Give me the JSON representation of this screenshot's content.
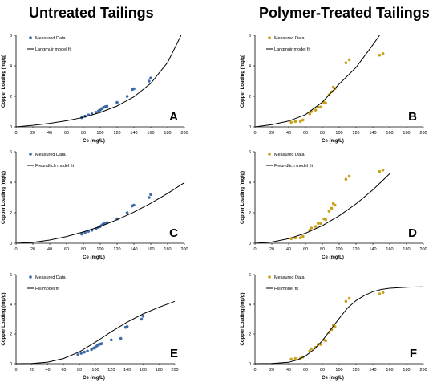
{
  "columns": {
    "left_title": "Untreated Tailings",
    "right_title": "Polymer-Treated Tailings"
  },
  "colors": {
    "untreated_marker": "#3d6aa8",
    "treated_marker": "#c9a21a",
    "model_line": "#000000",
    "axis": "#000000"
  },
  "chart_data": [
    {
      "panel": "A",
      "type": "scatter",
      "xlabel": "Ce (mg/L)",
      "ylabel": "Copper Loading (mg/g)",
      "xlim": [
        0,
        200
      ],
      "ylim": [
        0,
        6
      ],
      "xticks": [
        "0",
        "20",
        "40",
        "60",
        "80",
        "100",
        "120",
        "140",
        "160",
        "180",
        "200"
      ],
      "yticks": [
        "0",
        "2",
        "4",
        "6"
      ],
      "legend": {
        "placement": "top-left",
        "entries": [
          "Measured Data",
          "Langmuir model fit"
        ]
      },
      "series": [
        {
          "name": "Measured Data",
          "kind": "points",
          "x": [
            78,
            82,
            86,
            90,
            95,
            98,
            100,
            102,
            104,
            106,
            108,
            120,
            132,
            138,
            140,
            158,
            160
          ],
          "y": [
            0.6,
            0.7,
            0.78,
            0.85,
            0.95,
            1.05,
            1.1,
            1.2,
            1.28,
            1.32,
            1.35,
            1.6,
            2.0,
            2.45,
            2.5,
            3.0,
            3.2
          ]
        },
        {
          "name": "Langmuir model fit",
          "kind": "line",
          "x": [
            0,
            20,
            40,
            60,
            80,
            100,
            120,
            140,
            160,
            180,
            196
          ],
          "y": [
            0,
            0.1,
            0.23,
            0.4,
            0.62,
            0.94,
            1.37,
            1.97,
            2.85,
            4.22,
            6.0
          ]
        }
      ]
    },
    {
      "panel": "B",
      "type": "scatter",
      "xlabel": "Ce (mg/L)",
      "ylabel": "Copper Loading (mg/g)",
      "xlim": [
        0,
        200
      ],
      "ylim": [
        0,
        6
      ],
      "xticks": [
        "0",
        "20",
        "40",
        "60",
        "80",
        "100",
        "120",
        "140",
        "160",
        "180",
        "200"
      ],
      "yticks": [
        "0",
        "2",
        "4",
        "6"
      ],
      "legend": {
        "placement": "top-left",
        "entries": [
          "Measured Data",
          "Langmuir model fit"
        ]
      },
      "series": [
        {
          "name": "Measured Data",
          "kind": "points",
          "x": [
            43,
            48,
            54,
            57,
            65,
            67,
            72,
            75,
            78,
            82,
            84,
            88,
            91,
            93,
            95,
            108,
            112,
            148,
            152
          ],
          "y": [
            0.3,
            0.35,
            0.35,
            0.45,
            0.85,
            1.0,
            1.1,
            1.3,
            1.3,
            1.6,
            1.55,
            2.1,
            2.3,
            2.6,
            2.5,
            4.2,
            4.4,
            4.7,
            4.8
          ]
        },
        {
          "name": "Langmuir model fit",
          "kind": "line",
          "x": [
            0,
            20,
            40,
            60,
            80,
            100,
            120,
            140,
            148
          ],
          "y": [
            0,
            0.14,
            0.38,
            0.8,
            1.62,
            2.81,
            3.89,
            5.38,
            6.0
          ]
        }
      ]
    },
    {
      "panel": "C",
      "type": "scatter",
      "xlabel": "Ce (mg/L)",
      "ylabel": "Copper Loading (mg/g)",
      "xlim": [
        0,
        200
      ],
      "ylim": [
        0,
        6
      ],
      "xticks": [
        "0",
        "20",
        "40",
        "60",
        "80",
        "100",
        "120",
        "140",
        "160",
        "180",
        "200"
      ],
      "yticks": [
        "0",
        "2",
        "4",
        "6"
      ],
      "legend": {
        "placement": "top-left",
        "entries": [
          "Measured Data",
          "Freundlich model fit"
        ]
      },
      "series": [
        {
          "name": "Measured Data",
          "kind": "points",
          "x": [
            78,
            82,
            86,
            90,
            95,
            98,
            100,
            102,
            104,
            106,
            108,
            120,
            132,
            138,
            140,
            158,
            160
          ],
          "y": [
            0.6,
            0.7,
            0.78,
            0.85,
            0.95,
            1.05,
            1.1,
            1.2,
            1.28,
            1.32,
            1.35,
            1.6,
            2.0,
            2.45,
            2.5,
            3.0,
            3.2
          ]
        },
        {
          "name": "Freundlich model fit",
          "kind": "line",
          "x": [
            0,
            20,
            40,
            60,
            80,
            100,
            120,
            140,
            160,
            180,
            200
          ],
          "y": [
            0,
            0.06,
            0.21,
            0.44,
            0.74,
            1.1,
            1.54,
            2.04,
            2.62,
            3.27,
            3.98
          ]
        }
      ]
    },
    {
      "panel": "D",
      "type": "scatter",
      "xlabel": "Ce (mg/L)",
      "ylabel": "Copper Loading (mg/g)",
      "xlim": [
        0,
        200
      ],
      "ylim": [
        0,
        6
      ],
      "xticks": [
        "0",
        "20",
        "40",
        "60",
        "80",
        "100",
        "120",
        "140",
        "160",
        "180",
        "200"
      ],
      "yticks": [
        "0",
        "2",
        "4",
        "6"
      ],
      "legend": {
        "placement": "top-left",
        "entries": [
          "Measured Data",
          "Freundlich model fit"
        ]
      },
      "series": [
        {
          "name": "Measured Data",
          "kind": "points",
          "x": [
            43,
            48,
            54,
            57,
            65,
            67,
            72,
            75,
            78,
            82,
            84,
            88,
            91,
            93,
            95,
            108,
            112,
            148,
            152
          ],
          "y": [
            0.3,
            0.35,
            0.35,
            0.45,
            0.85,
            1.0,
            1.1,
            1.3,
            1.3,
            1.6,
            1.55,
            2.1,
            2.3,
            2.6,
            2.5,
            4.2,
            4.4,
            4.7,
            4.8
          ]
        },
        {
          "name": "Freundlich model fit",
          "kind": "line",
          "x": [
            0,
            20,
            40,
            60,
            80,
            100,
            120,
            140,
            160
          ],
          "y": [
            0,
            0.08,
            0.3,
            0.66,
            1.16,
            1.8,
            2.58,
            3.5,
            4.56
          ]
        }
      ]
    },
    {
      "panel": "E",
      "type": "scatter",
      "xlabel": "Ce (mg/L)",
      "ylabel": "Copper Loading (mg/g)",
      "xlim": [
        0,
        200
      ],
      "ylim": [
        0,
        6
      ],
      "xticks": [
        "0",
        "20",
        "40",
        "60",
        "80",
        "100",
        "120",
        "140",
        "160",
        "180",
        "200"
      ],
      "yticks": [
        "0",
        "2",
        "4",
        "6"
      ],
      "legend": {
        "placement": "top-left",
        "entries": [
          "Measured Data",
          "Hill model fit"
        ]
      },
      "series": [
        {
          "name": "Measured Data",
          "kind": "points",
          "x": [
            78,
            82,
            86,
            90,
            95,
            98,
            100,
            102,
            104,
            106,
            108,
            120,
            132,
            138,
            140,
            158,
            160
          ],
          "y": [
            0.6,
            0.7,
            0.78,
            0.85,
            0.95,
            1.05,
            1.1,
            1.2,
            1.28,
            1.32,
            1.35,
            1.6,
            1.7,
            2.45,
            2.5,
            3.0,
            3.2
          ]
        },
        {
          "name": "Hill model fit",
          "kind": "line",
          "x": [
            0,
            20,
            40,
            60,
            80,
            100,
            120,
            140,
            160,
            180,
            200
          ],
          "y": [
            0,
            0.01,
            0.1,
            0.35,
            0.8,
            1.45,
            2.15,
            2.8,
            3.35,
            3.8,
            4.2
          ]
        }
      ]
    },
    {
      "panel": "F",
      "type": "scatter",
      "xlabel": "Ce (mg/L)",
      "ylabel": "Copper Loading (mg/g)",
      "xlim": [
        0,
        200
      ],
      "ylim": [
        0,
        6
      ],
      "xticks": [
        "0",
        "20",
        "40",
        "60",
        "80",
        "100",
        "120",
        "140",
        "160",
        "180",
        "200"
      ],
      "yticks": [
        "0",
        "2",
        "4",
        "6"
      ],
      "legend": {
        "placement": "top-left",
        "entries": [
          "Measured Data",
          "Hill model fit"
        ]
      },
      "series": [
        {
          "name": "Measured Data",
          "kind": "points",
          "x": [
            43,
            48,
            54,
            57,
            65,
            67,
            72,
            75,
            78,
            82,
            84,
            88,
            91,
            93,
            95,
            108,
            112,
            148,
            152
          ],
          "y": [
            0.3,
            0.35,
            0.35,
            0.45,
            0.85,
            1.0,
            1.1,
            1.3,
            1.3,
            1.6,
            1.55,
            2.1,
            2.3,
            2.6,
            2.5,
            4.2,
            4.4,
            4.7,
            4.8
          ]
        },
        {
          "name": "Hill model fit",
          "kind": "line",
          "x": [
            0,
            20,
            40,
            50,
            60,
            70,
            80,
            90,
            100,
            110,
            120,
            130,
            140,
            150,
            160,
            180,
            200
          ],
          "y": [
            0,
            0.01,
            0.09,
            0.25,
            0.52,
            0.95,
            1.55,
            2.3,
            3.05,
            3.75,
            4.25,
            4.6,
            4.85,
            5.0,
            5.08,
            5.15,
            5.18
          ]
        }
      ]
    }
  ]
}
